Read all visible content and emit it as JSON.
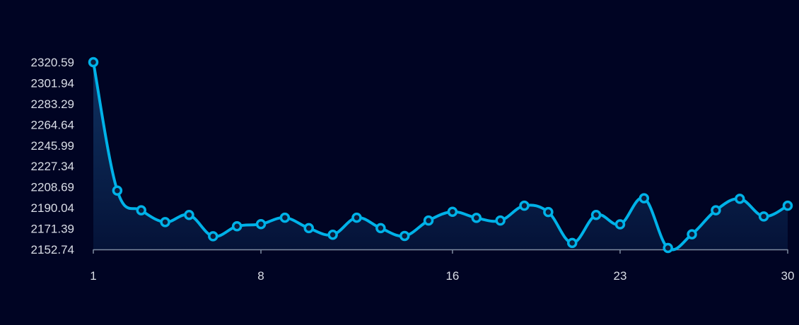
{
  "chart_data": {
    "type": "area",
    "title": "",
    "xlabel": "",
    "ylabel": "",
    "x": [
      1,
      2,
      3,
      4,
      5,
      6,
      7,
      8,
      9,
      10,
      11,
      12,
      13,
      14,
      15,
      16,
      17,
      18,
      19,
      20,
      21,
      22,
      23,
      24,
      25,
      26,
      27,
      28,
      29,
      30
    ],
    "series": [
      {
        "values": [
          2320.59,
          2205.5,
          2187.8,
          2177.2,
          2183.6,
          2164.5,
          2173.5,
          2175.4,
          2181.2,
          2171.8,
          2165.9,
          2181.2,
          2171.8,
          2164.8,
          2178.6,
          2186.5,
          2181.0,
          2178.6,
          2191.9,
          2186.2,
          2158.5,
          2183.6,
          2175.2,
          2198.6,
          2154.0,
          2166.3,
          2187.8,
          2198.1,
          2182.3,
          2191.9
        ]
      }
    ],
    "ylim": [
      2152.74,
      2320.59
    ],
    "yticks": [
      "2320.59",
      "2301.94",
      "2283.29",
      "2264.64",
      "2245.99",
      "2227.34",
      "2208.69",
      "2190.04",
      "2171.39",
      "2152.74"
    ],
    "xticks": [
      "1",
      "8",
      "16",
      "23",
      "30"
    ],
    "xlim": [
      1,
      30
    ],
    "grid": false,
    "colors": {
      "background": "#000423",
      "line": "#00b2e8",
      "marker_fill": "#0c1b3a",
      "axis": "#7f8ba0",
      "area_top": "#123a6b",
      "area_bottom": "#05143a"
    }
  }
}
